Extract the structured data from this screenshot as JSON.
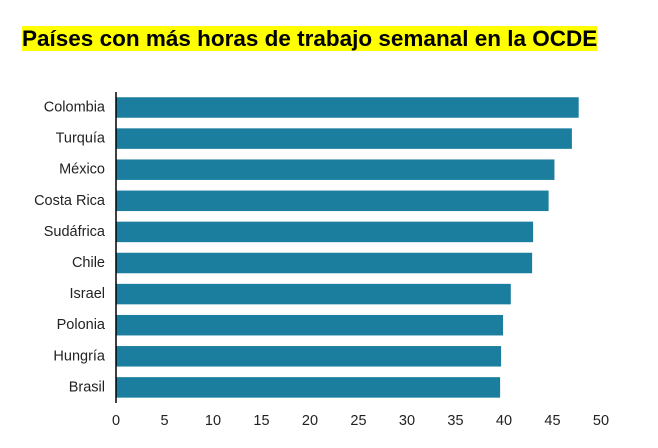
{
  "chart_data": {
    "type": "bar",
    "orientation": "horizontal",
    "title": "Países con más horas de trabajo semanal en la OCDE",
    "xlabel": "",
    "ylabel": "",
    "categories": [
      "Colombia",
      "Turquía",
      "México",
      "Costa Rica",
      "Sudáfrica",
      "Chile",
      "Israel",
      "Polonia",
      "Hungría",
      "Brasil"
    ],
    "values": [
      47.7,
      47.0,
      45.2,
      44.6,
      43.0,
      42.9,
      40.7,
      39.9,
      39.7,
      39.6
    ],
    "xlim": [
      0,
      50
    ],
    "xticks": [
      "0",
      "5",
      "10",
      "15",
      "20",
      "25",
      "30",
      "35",
      "40",
      "45",
      "50"
    ],
    "grid": false,
    "legend": "none",
    "colors": {
      "bar": "#1c7e9e",
      "title_highlight": "#ffff00",
      "axis": "#000000"
    }
  }
}
